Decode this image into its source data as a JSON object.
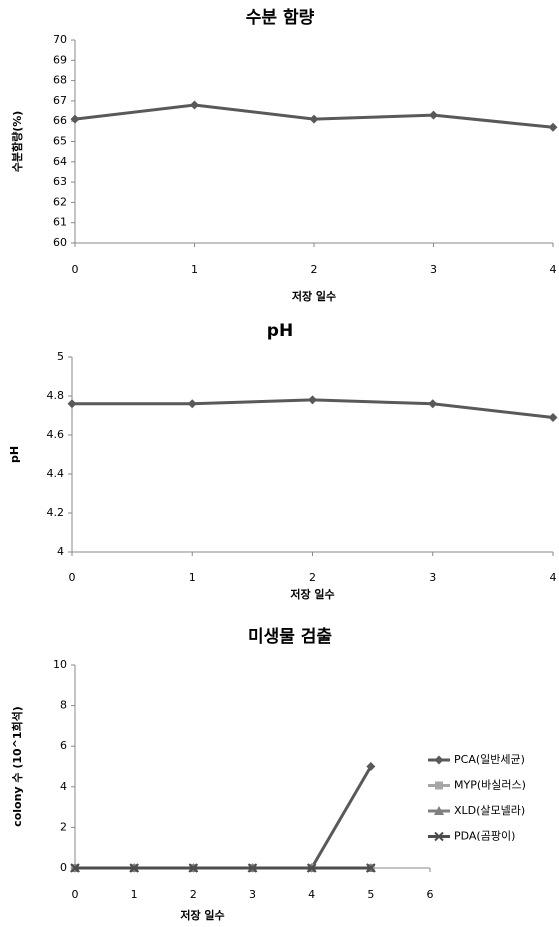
{
  "chart_data": [
    {
      "type": "line",
      "title": "수분 함량",
      "x_label": "저장 일수",
      "y_label": "수분함량(%)",
      "x": [
        0,
        1,
        2,
        3,
        4
      ],
      "values": [
        66.1,
        66.8,
        66.1,
        66.3,
        65.7
      ],
      "color": "#595959",
      "marker": "diamond",
      "xlim": [
        0,
        4
      ],
      "xticks": [
        0,
        1,
        2,
        3,
        4
      ],
      "ylim": [
        60,
        70
      ],
      "yticks": [
        60,
        61,
        62,
        63,
        64,
        65,
        66,
        67,
        68,
        69,
        70
      ],
      "grid": false
    },
    {
      "type": "line",
      "title": "pH",
      "x_label": "저장 일수",
      "y_label": "pH",
      "x": [
        0,
        1,
        2,
        3,
        4
      ],
      "values": [
        4.76,
        4.76,
        4.78,
        4.76,
        4.69
      ],
      "color": "#595959",
      "marker": "diamond",
      "xlim": [
        0,
        4
      ],
      "xticks": [
        0,
        1,
        2,
        3,
        4
      ],
      "ylim": [
        4,
        5
      ],
      "yticks": [
        4,
        4.2,
        4.4,
        4.6,
        4.8,
        5
      ],
      "grid": false
    },
    {
      "type": "line",
      "title": "미생물 검출",
      "x_label": "저장 일수",
      "y_label": "colony 수 (10^1희석)",
      "x": [
        0,
        1,
        2,
        3,
        4,
        5
      ],
      "series": [
        {
          "name": "PCA(일반세균)",
          "color": "#595959",
          "marker": "diamond",
          "values": [
            0,
            0,
            0,
            0,
            0,
            5
          ]
        },
        {
          "name": "MYP(바실러스)",
          "color": "#a6a6a6",
          "marker": "square",
          "values": [
            0,
            0,
            0,
            0,
            0,
            0
          ]
        },
        {
          "name": "XLD(살모넬라)",
          "color": "#7f7f7f",
          "marker": "triangle",
          "values": [
            0,
            0,
            0,
            0,
            0,
            0
          ]
        },
        {
          "name": "PDA(곰팡이)",
          "color": "#4d4d4d",
          "marker": "x",
          "values": [
            0,
            0,
            0,
            0,
            0,
            0
          ]
        }
      ],
      "xlim": [
        0,
        6
      ],
      "xticks": [
        0,
        1,
        2,
        3,
        4,
        5,
        6
      ],
      "ylim": [
        0,
        10
      ],
      "yticks": [
        0,
        2,
        4,
        6,
        8,
        10
      ],
      "grid": false,
      "legend": "right"
    }
  ]
}
